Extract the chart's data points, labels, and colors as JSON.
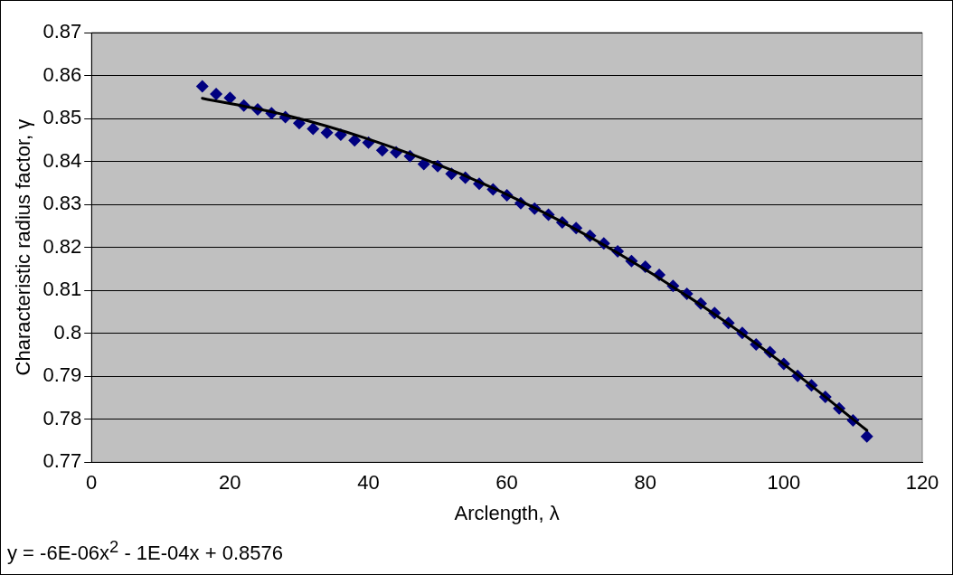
{
  "chart_data": {
    "type": "scatter",
    "xlabel": "Arclength, λ",
    "ylabel": "Characteristic radius factor, γ",
    "xlim": [
      0,
      120
    ],
    "xticks": [
      0,
      20,
      40,
      60,
      80,
      100,
      120
    ],
    "ylim": [
      0.77,
      0.87
    ],
    "yticks": [
      0.77,
      0.78,
      0.79,
      0.8,
      0.81,
      0.82,
      0.83,
      0.84,
      0.85,
      0.86,
      0.87
    ],
    "grid": "y",
    "legend": false,
    "marker": "diamond",
    "annotations": [
      "y = -6E-06x$^{2}$ - 1E-04x + 0.8576"
    ],
    "series": [
      {
        "color": "#000080",
        "x": [
          16,
          18,
          20,
          22,
          24,
          26,
          28,
          30,
          32,
          34,
          36,
          38,
          40,
          42,
          44,
          46,
          48,
          50,
          52,
          54,
          56,
          58,
          60,
          62,
          64,
          66,
          68,
          70,
          72,
          74,
          76,
          78,
          80,
          82,
          84,
          86,
          88,
          90,
          92,
          94,
          96,
          98,
          100,
          102,
          104,
          106,
          108,
          110,
          112
        ],
        "values": [
          0.8575,
          0.8557,
          0.8548,
          0.853,
          0.8521,
          0.8512,
          0.8503,
          0.8489,
          0.8476,
          0.8467,
          0.8462,
          0.8449,
          0.8444,
          0.8426,
          0.8421,
          0.8412,
          0.8394,
          0.8389,
          0.8371,
          0.8362,
          0.8348,
          0.8335,
          0.8321,
          0.8303,
          0.829,
          0.8276,
          0.8258,
          0.8245,
          0.8227,
          0.8209,
          0.8191,
          0.8168,
          0.8155,
          0.8136,
          0.811,
          0.8092,
          0.8069,
          0.8047,
          0.8024,
          0.8001,
          0.7974,
          0.7956,
          0.7929,
          0.7901,
          0.7879,
          0.7852,
          0.7825,
          0.7797,
          0.776
        ]
      },
      {
        "type": "line",
        "color": "#000000",
        "marker": "none",
        "line_style": "solid",
        "x": [
          16,
          28,
          40,
          52,
          64,
          76,
          88,
          100,
          112
        ],
        "values": [
          0.8547,
          0.8508,
          0.8452,
          0.838,
          0.8292,
          0.8187,
          0.8066,
          0.7928,
          0.7774
        ]
      }
    ]
  }
}
